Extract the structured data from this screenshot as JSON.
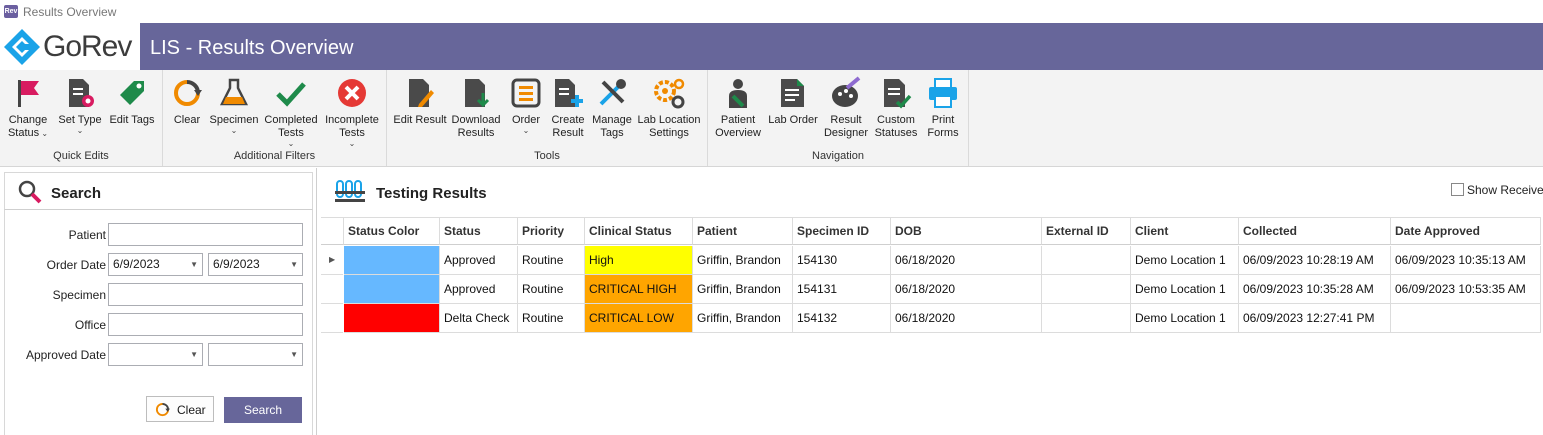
{
  "window": {
    "title": "Results Overview",
    "app_icon": "gorev-app-icon"
  },
  "banner": {
    "logo_text": "GoRev",
    "title": "LIS - Results Overview",
    "bar_color": "#67669a"
  },
  "ribbon": {
    "groups": [
      {
        "label": "Quick Edits",
        "buttons": [
          {
            "label1": "Change",
            "label2": "Status",
            "icon": "flag-icon",
            "dropdown": true
          },
          {
            "label1": "Set Type",
            "label2": "",
            "icon": "document-settings-icon",
            "dropdown": true
          },
          {
            "label1": "Edit Tags",
            "label2": "",
            "icon": "tag-icon",
            "dropdown": false
          }
        ]
      },
      {
        "label": "Additional Filters",
        "buttons": [
          {
            "label1": "Clear",
            "label2": "",
            "icon": "refresh-icon",
            "dropdown": false
          },
          {
            "label1": "Specimen",
            "label2": "",
            "icon": "flask-icon",
            "dropdown": true
          },
          {
            "label1": "Completed",
            "label2": "Tests",
            "icon": "checkmark-icon",
            "dropdown": true
          },
          {
            "label1": "Incomplete",
            "label2": "Tests",
            "icon": "error-x-icon",
            "dropdown": true
          }
        ]
      },
      {
        "label": "Tools",
        "buttons": [
          {
            "label1": "Edit Result",
            "label2": "",
            "icon": "edit-document-icon",
            "dropdown": false
          },
          {
            "label1": "Download",
            "label2": "Results",
            "icon": "download-document-icon",
            "dropdown": false
          },
          {
            "label1": "Order",
            "label2": "",
            "icon": "order-list-icon",
            "dropdown": true
          },
          {
            "label1": "Create",
            "label2": "Result",
            "icon": "create-document-icon",
            "dropdown": false
          },
          {
            "label1": "Manage",
            "label2": "Tags",
            "icon": "tools-icon",
            "dropdown": false
          },
          {
            "label1": "Lab Location",
            "label2": "Settings",
            "icon": "gears-icon",
            "dropdown": false
          }
        ]
      },
      {
        "label": "Navigation",
        "buttons": [
          {
            "label1": "Patient",
            "label2": "Overview",
            "icon": "patient-icon",
            "dropdown": false
          },
          {
            "label1": "Lab Order",
            "label2": "",
            "icon": "lab-order-document-icon",
            "dropdown": false
          },
          {
            "label1": "Result",
            "label2": "Designer",
            "icon": "palette-icon",
            "dropdown": false
          },
          {
            "label1": "Custom",
            "label2": "Statuses",
            "icon": "custom-status-icon",
            "dropdown": false
          },
          {
            "label1": "Print",
            "label2": "Forms",
            "icon": "printer-icon",
            "dropdown": false
          }
        ]
      }
    ]
  },
  "search": {
    "title": "Search",
    "fields": {
      "patient_label": "Patient",
      "patient_value": "",
      "order_date_label": "Order Date",
      "order_date_from": "6/9/2023",
      "order_date_to": "6/9/2023",
      "specimen_label": "Specimen",
      "specimen_value": "",
      "office_label": "Office",
      "office_value": "",
      "approved_date_label": "Approved Date",
      "approved_from": "",
      "approved_to": ""
    },
    "clear_label": "Clear",
    "search_label": "Search"
  },
  "results": {
    "title": "Testing Results",
    "show_label": "Show Receive",
    "columns": [
      "Status Color",
      "Status",
      "Priority",
      "Clinical Status",
      "Patient",
      "Specimen ID",
      "DOB",
      "External ID",
      "Client",
      "Collected",
      "Date Approved"
    ],
    "rows": [
      {
        "status_color": "#66b8ff",
        "status": "Approved",
        "priority": "Routine",
        "clinical_status": "High",
        "clinical_color": "#ffff00",
        "patient": "Griffin, Brandon",
        "specimen_id": "154130",
        "dob": "06/18/2020",
        "external_id": "",
        "client": "Demo Location 1",
        "collected": "06/09/2023 10:28:19 AM",
        "date_approved": "06/09/2023 10:35:13 AM"
      },
      {
        "status_color": "#66b8ff",
        "status": "Approved",
        "priority": "Routine",
        "clinical_status": "CRITICAL HIGH",
        "clinical_color": "#ffa500",
        "patient": "Griffin, Brandon",
        "specimen_id": "154131",
        "dob": "06/18/2020",
        "external_id": "",
        "client": "Demo Location 1",
        "collected": "06/09/2023 10:35:28 AM",
        "date_approved": "06/09/2023 10:53:35 AM"
      },
      {
        "status_color": "#ff0000",
        "status": "Delta Check",
        "priority": "Routine",
        "clinical_status": "CRITICAL LOW",
        "clinical_color": "#ffa500",
        "patient": "Griffin, Brandon",
        "specimen_id": "154132",
        "dob": "06/18/2020",
        "external_id": "",
        "client": "Demo Location 1",
        "collected": "06/09/2023 12:27:41 PM",
        "date_approved": ""
      }
    ]
  }
}
